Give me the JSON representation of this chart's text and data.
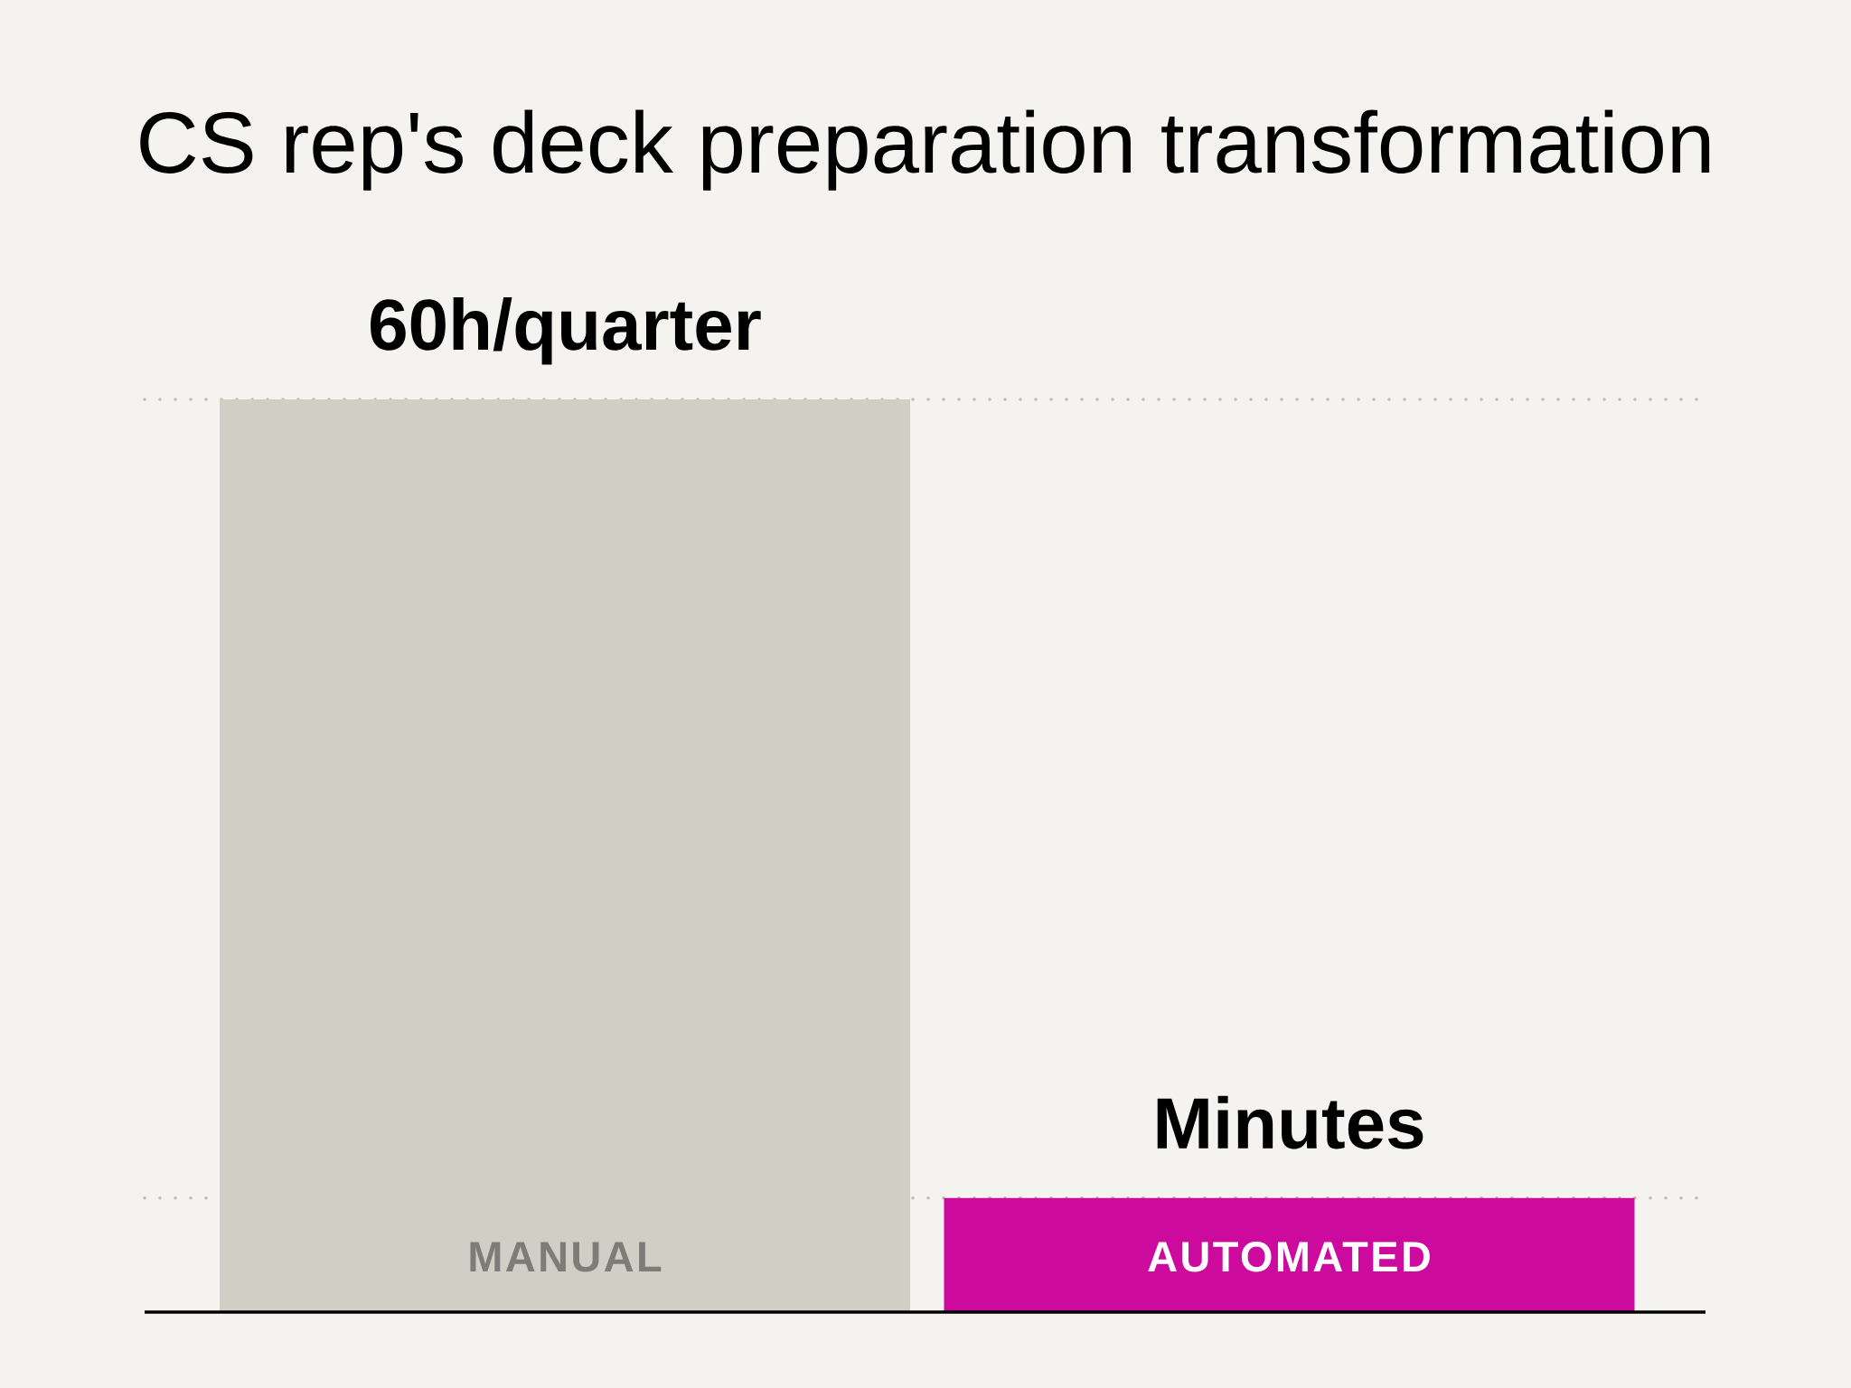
{
  "chart_data": {
    "type": "bar",
    "title": "CS rep's deck preparation transformation",
    "categories": [
      "MANUAL",
      "AUTOMATED"
    ],
    "values": [
      60,
      7.5
    ],
    "colors": [
      "#d1cec6",
      "#cc0a9e"
    ],
    "ylim": [
      0,
      60
    ],
    "tick_labels": "x",
    "value_labels": [
      "60h/quarter",
      "Minutes"
    ],
    "ref_lines": [
      {
        "axis": "y",
        "value": 60,
        "color": "#bcbab4",
        "line_style": "dotted"
      },
      {
        "axis": "y",
        "value": 7.5,
        "color": "#bcbab4",
        "line_style": "dotted"
      }
    ]
  }
}
